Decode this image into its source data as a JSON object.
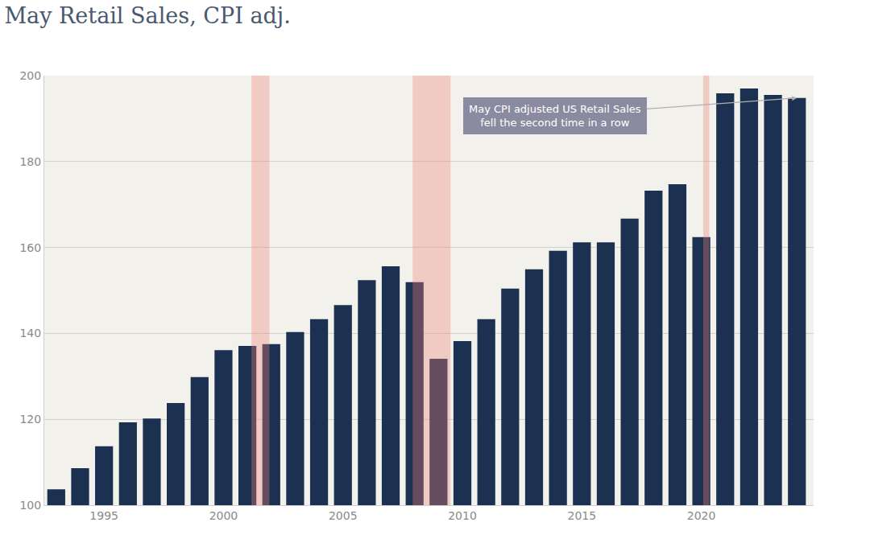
{
  "chart_data": {
    "type": "bar",
    "title": "May Retail Sales, CPI adj.",
    "x": [
      1993,
      1994,
      1995,
      1996,
      1997,
      1998,
      1999,
      2000,
      2001,
      2002,
      2003,
      2004,
      2005,
      2006,
      2007,
      2008,
      2009,
      2010,
      2011,
      2012,
      2013,
      2014,
      2015,
      2016,
      2017,
      2018,
      2019,
      2020,
      2021,
      2022,
      2023,
      2024
    ],
    "values": [
      103.7,
      108.6,
      113.7,
      119.3,
      120.2,
      123.8,
      129.8,
      136.1,
      137.1,
      137.5,
      140.3,
      143.3,
      146.6,
      152.4,
      155.6,
      151.9,
      134.1,
      138.2,
      143.3,
      150.4,
      154.9,
      159.2,
      161.2,
      161.2,
      166.7,
      173.2,
      174.7,
      162.4,
      195.9,
      197.0,
      195.5,
      194.8
    ],
    "color": "#1c3152",
    "xlim": [
      1992.5,
      2024.7
    ],
    "xticks": [
      1995,
      2000,
      2005,
      2010,
      2015,
      2020
    ],
    "ylim": [
      100,
      200
    ],
    "yticks": [
      100,
      120,
      140,
      160,
      180,
      200
    ],
    "grid": true,
    "recessions": [
      [
        2001.17,
        2001.92
      ],
      [
        2007.92,
        2009.5
      ],
      [
        2020.08,
        2020.33
      ]
    ],
    "annotation": [
      "May CPI adjusted US Retail Sales",
      "fell the second time in a row"
    ]
  }
}
